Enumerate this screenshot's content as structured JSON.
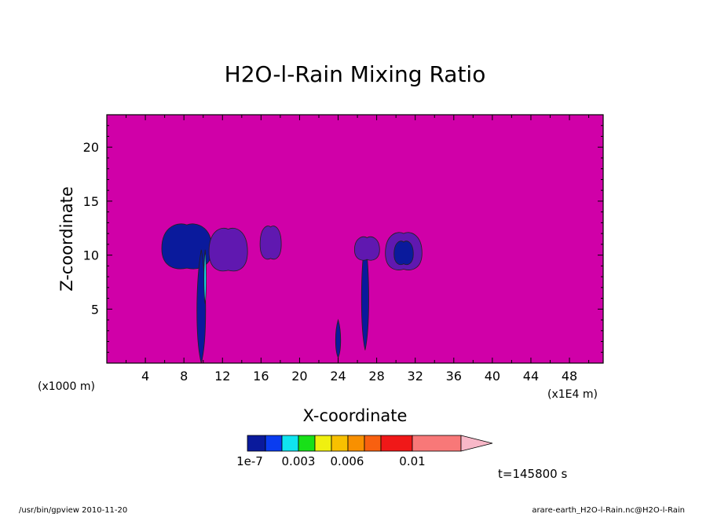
{
  "chart_data": {
    "type": "heatmap",
    "title": "H2O-l-Rain Mixing Ratio",
    "xlabel": "X-coordinate",
    "ylabel": "Z-coordinate",
    "x_unit_left": "(x1000 m)",
    "x_unit_right": "(x1E4 m)",
    "xlim": [
      0,
      51.5
    ],
    "ylim": [
      0,
      23
    ],
    "x_ticks": [
      "4",
      "8",
      "12",
      "16",
      "20",
      "24",
      "28",
      "32",
      "36",
      "40",
      "44",
      "48"
    ],
    "y_ticks": [
      "5",
      "10",
      "15",
      "20"
    ],
    "background_color": "#d000a8",
    "colorbar": {
      "colors": [
        "#0a1a9c",
        "#0a3cf0",
        "#10e4f0",
        "#18e018",
        "#f0f010",
        "#f8c000",
        "#f89000",
        "#f86010",
        "#f01818",
        "#f87878",
        "#f8b8c8"
      ],
      "labels": [
        "1e-7",
        "0.003",
        "0.006",
        "0.01"
      ]
    },
    "time_label": "t=145800 s",
    "footer_left": "/usr/bin/gpview  2010-11-20",
    "footer_right": "arare-earth_H2O-l-Rain.nc@H2O-l-Rain",
    "features": [
      {
        "kind": "cloud",
        "x_center": 8.3,
        "z_top": 12.8,
        "z_bottom": 8.8,
        "half_width": 2.6,
        "color": "#0a1a9c"
      },
      {
        "kind": "cloud",
        "x_center": 12.6,
        "z_top": 12.4,
        "z_bottom": 8.6,
        "half_width": 2.0,
        "color": "#6018b0"
      },
      {
        "kind": "cloud",
        "x_center": 17.0,
        "z_top": 12.6,
        "z_bottom": 9.7,
        "half_width": 1.1,
        "color": "#6018b0"
      },
      {
        "kind": "stem",
        "x_center": 9.8,
        "z_top": 10.5,
        "z_bottom": 0,
        "half_width": 0.6,
        "color": "#0a1a9c"
      },
      {
        "kind": "core",
        "x_center": 10.2,
        "z_top": 10.5,
        "z_bottom": 5.5,
        "half_width": 0.15,
        "color": "#10e4f0"
      },
      {
        "kind": "stem",
        "x_center": 24.0,
        "z_top": 4.0,
        "z_bottom": 0.5,
        "half_width": 0.35,
        "color": "#0a1a9c"
      },
      {
        "kind": "stem",
        "x_center": 26.8,
        "z_top": 11.5,
        "z_bottom": 1.2,
        "half_width": 0.5,
        "color": "#0a1a9c"
      },
      {
        "kind": "cloud",
        "x_center": 27.0,
        "z_top": 11.6,
        "z_bottom": 9.6,
        "half_width": 1.3,
        "color": "#6018b0"
      },
      {
        "kind": "cloud",
        "x_center": 30.8,
        "z_top": 12.0,
        "z_bottom": 8.7,
        "half_width": 1.9,
        "color": "#6018b0"
      },
      {
        "kind": "cloud",
        "x_center": 30.8,
        "z_top": 11.2,
        "z_bottom": 9.2,
        "half_width": 1.0,
        "color": "#0a1a9c"
      }
    ]
  }
}
